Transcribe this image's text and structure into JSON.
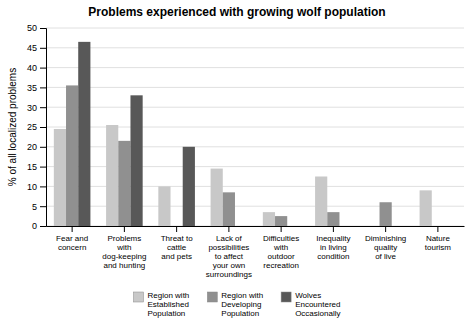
{
  "chart_data": {
    "type": "bar",
    "title": "Problems experienced with growing wolf population",
    "y_label": "% of all localized problems",
    "categories": [
      "Fear and\nconcern",
      "Problems\nwith\ndog-keeping\nand hunting",
      "Threat to\ncattle\nand pets",
      "Lack of\npossibilities\nto affect\nyour own\nsurroundings",
      "Difficulties\nwith\noutdoor\nrecreation",
      "Inequality\nin living\ncondition",
      "Diminishing\nquality\nof live",
      "Nature\ntourism"
    ],
    "series": [
      {
        "name": "Region with\nEstablished\nPopulation",
        "color": "#c8c8c8",
        "values": [
          24.5,
          25.5,
          10.0,
          14.5,
          3.5,
          12.5,
          0.0,
          9.0
        ]
      },
      {
        "name": "Region with\nDeveloping\nPopulation",
        "color": "#909090",
        "values": [
          35.5,
          21.5,
          0.0,
          8.5,
          2.5,
          3.5,
          6.0,
          0.0
        ]
      },
      {
        "name": "Wolves\nEncountered\nOccasionally",
        "color": "#585858",
        "values": [
          46.5,
          33.0,
          20.0,
          0.0,
          0.0,
          0.0,
          0.0,
          0.0
        ]
      }
    ],
    "ylim": [
      0,
      50
    ],
    "yticks": [
      0,
      5,
      10,
      15,
      20,
      25,
      30,
      35,
      40,
      45,
      50
    ],
    "grid": true,
    "legend": "bottom"
  }
}
